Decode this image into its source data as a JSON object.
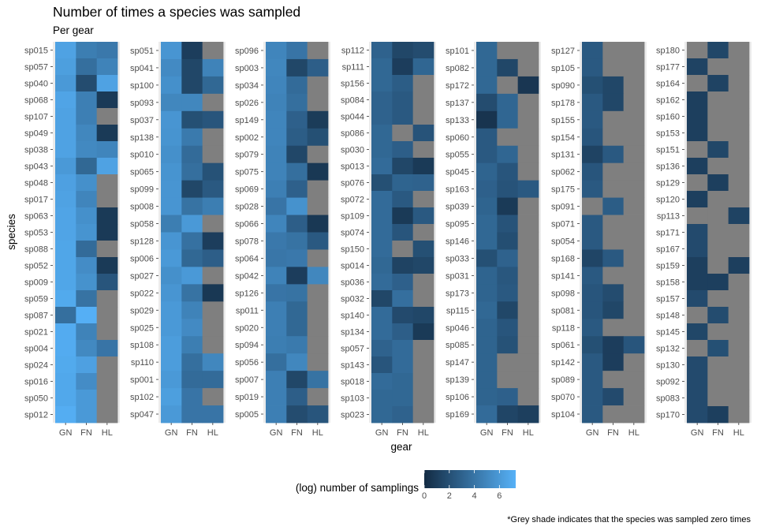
{
  "chart_data": {
    "type": "heatmap",
    "title": "Number of times a species was sampled",
    "subtitle": "Per gear",
    "xlabel": "gear",
    "ylabel": "species",
    "x_categories": [
      "GN",
      "FN",
      "HL"
    ],
    "legend": {
      "title": "(log) number of samplings",
      "ticks": [
        0,
        2,
        4,
        6
      ],
      "range": [
        0,
        7.3
      ],
      "low_color": "#132B43",
      "high_color": "#56B1F7",
      "placement": "bottom"
    },
    "na_color": "#7F7F7F",
    "caption": "*Grey shade indicates that the species was sampled zero times",
    "facets": [
      {
        "species": [
          "sp015",
          "sp057",
          "sp040",
          "sp068",
          "sp107",
          "sp049",
          "sp038",
          "sp043",
          "sp048",
          "sp017",
          "sp063",
          "sp053",
          "sp088",
          "sp052",
          "sp009",
          "sp059",
          "sp087",
          "sp021",
          "sp004",
          "sp024",
          "sp016",
          "sp050",
          "sp012"
        ],
        "values": [
          [
            6.5,
            4.5,
            4.2
          ],
          [
            6.3,
            3.7,
            4.8
          ],
          [
            6.0,
            1.8,
            6.5
          ],
          [
            6.6,
            4.6,
            0.8
          ],
          [
            6.5,
            4.6,
            null
          ],
          [
            6.5,
            5.0,
            0.8
          ],
          [
            6.5,
            5.1,
            4.9
          ],
          [
            6.0,
            3.3,
            6.5
          ],
          [
            6.4,
            5.5,
            null
          ],
          [
            6.5,
            4.9,
            null
          ],
          [
            6.6,
            5.5,
            0.8
          ],
          [
            6.6,
            5.7,
            0.8
          ],
          [
            6.7,
            3.5,
            null
          ],
          [
            6.7,
            5.3,
            0.8
          ],
          [
            6.7,
            5.6,
            2.3
          ],
          [
            6.9,
            3.9,
            null
          ],
          [
            3.7,
            7.2,
            null
          ],
          [
            7.0,
            4.8,
            null
          ],
          [
            7.0,
            5.1,
            4.0
          ],
          [
            6.9,
            6.4,
            null
          ],
          [
            6.8,
            5.3,
            null
          ],
          [
            6.8,
            6.0,
            null
          ],
          [
            7.1,
            6.0,
            null
          ]
        ]
      },
      {
        "species": [
          "sp051",
          "sp041",
          "sp100",
          "sp093",
          "sp037",
          "sp138",
          "sp010",
          "sp065",
          "sp099",
          "sp008",
          "sp058",
          "sp128",
          "sp006",
          "sp027",
          "sp022",
          "sp029",
          "sp025",
          "sp108",
          "sp110",
          "sp001",
          "sp102",
          "sp047"
        ],
        "values": [
          [
            5.8,
            1.0,
            null
          ],
          [
            5.2,
            1.5,
            4.8
          ],
          [
            5.5,
            1.5,
            3.3
          ],
          [
            5.0,
            5.0,
            null
          ],
          [
            5.8,
            2.0,
            2.3
          ],
          [
            5.7,
            4.3,
            null
          ],
          [
            5.5,
            3.5,
            null
          ],
          [
            5.7,
            3.7,
            2.1
          ],
          [
            5.8,
            1.5,
            2.5
          ],
          [
            5.8,
            3.9,
            4.5
          ],
          [
            4.5,
            6.0,
            null
          ],
          [
            5.8,
            3.8,
            1.0
          ],
          [
            6.0,
            3.3,
            2.8
          ],
          [
            5.5,
            6.0,
            null
          ],
          [
            5.8,
            3.9,
            0.7
          ],
          [
            6.0,
            4.8,
            null
          ],
          [
            6.0,
            5.2,
            null
          ],
          [
            6.2,
            4.5,
            null
          ],
          [
            6.2,
            3.7,
            5.0
          ],
          [
            6.0,
            3.5,
            3.5
          ],
          [
            6.3,
            4.0,
            null
          ],
          [
            6.0,
            4.0,
            4.0
          ]
        ]
      },
      {
        "species": [
          "sp096",
          "sp003",
          "sp034",
          "sp026",
          "sp149",
          "sp002",
          "sp079",
          "sp075",
          "sp069",
          "sp028",
          "sp066",
          "sp078",
          "sp064",
          "sp042",
          "sp126",
          "sp011",
          "sp020",
          "sp094",
          "sp056",
          "sp007",
          "sp019",
          "sp005"
        ],
        "values": [
          [
            4.9,
            4.0,
            null
          ],
          [
            5.0,
            1.5,
            2.8
          ],
          [
            4.9,
            3.5,
            null
          ],
          [
            4.8,
            3.7,
            null
          ],
          [
            4.9,
            2.9,
            0.9
          ],
          [
            4.9,
            2.7,
            2.0
          ],
          [
            4.8,
            1.5,
            null
          ],
          [
            4.8,
            3.7,
            0.7
          ],
          [
            4.6,
            2.9,
            null
          ],
          [
            4.0,
            5.6,
            null
          ],
          [
            4.9,
            2.8,
            0.7
          ],
          [
            4.2,
            3.9,
            2.5
          ],
          [
            4.1,
            4.2,
            null
          ],
          [
            4.8,
            1.0,
            5.0
          ],
          [
            4.0,
            3.9,
            null
          ],
          [
            4.6,
            3.3,
            null
          ],
          [
            4.6,
            3.3,
            null
          ],
          [
            4.5,
            4.3,
            null
          ],
          [
            3.7,
            5.0,
            null
          ],
          [
            4.6,
            1.5,
            3.9
          ],
          [
            4.6,
            2.8,
            null
          ],
          [
            4.6,
            1.8,
            2.3
          ]
        ]
      },
      {
        "species": [
          "sp112",
          "sp111",
          "sp156",
          "sp084",
          "sp044",
          "sp086",
          "sp030",
          "sp013",
          "sp076",
          "sp072",
          "sp109",
          "sp074",
          "sp150",
          "sp014",
          "sp036",
          "sp032",
          "sp140",
          "sp134",
          "sp057",
          "sp143",
          "sp018",
          "sp103",
          "sp023"
        ],
        "values": [
          [
            3.0,
            1.5,
            1.8
          ],
          [
            3.3,
            1.0,
            3.2
          ],
          [
            3.3,
            2.7,
            null
          ],
          [
            3.0,
            2.5,
            null
          ],
          [
            3.0,
            2.5,
            null
          ],
          [
            3.3,
            null,
            2.2
          ],
          [
            3.3,
            2.8,
            null
          ],
          [
            3.5,
            1.5,
            0.8
          ],
          [
            2.0,
            3.1,
            3.0
          ],
          [
            3.5,
            2.5,
            null
          ],
          [
            3.5,
            0.8,
            2.5
          ],
          [
            3.5,
            2.3,
            null
          ],
          [
            3.5,
            null,
            2.0
          ],
          [
            3.3,
            1.3,
            1.5
          ],
          [
            3.5,
            2.9,
            null
          ],
          [
            1.5,
            3.7,
            null
          ],
          [
            3.5,
            1.7,
            1.5
          ],
          [
            3.5,
            2.8,
            0.8
          ],
          [
            3.0,
            3.5,
            null
          ],
          [
            2.3,
            3.5,
            null
          ],
          [
            3.5,
            3.3,
            null
          ],
          [
            3.3,
            3.3,
            null
          ],
          [
            3.3,
            3.0,
            null
          ]
        ]
      },
      {
        "species": [
          "sp101",
          "sp082",
          "sp172",
          "sp137",
          "sp133",
          "sp060",
          "sp055",
          "sp045",
          "sp163",
          "sp039",
          "sp095",
          "sp146",
          "sp033",
          "sp031",
          "sp173",
          "sp115",
          "sp046",
          "sp085",
          "sp147",
          "sp139",
          "sp106",
          "sp169"
        ],
        "values": [
          [
            3.3,
            null,
            null
          ],
          [
            3.3,
            1.5,
            null
          ],
          [
            3.3,
            null,
            0.6
          ],
          [
            1.8,
            3.2,
            null
          ],
          [
            0.5,
            3.2,
            null
          ],
          [
            2.5,
            null,
            null
          ],
          [
            2.5,
            3.2,
            null
          ],
          [
            3.1,
            2.3,
            null
          ],
          [
            2.9,
            2.2,
            2.5
          ],
          [
            3.1,
            0.8,
            null
          ],
          [
            3.3,
            2.2,
            null
          ],
          [
            3.3,
            1.9,
            null
          ],
          [
            2.0,
            3.0,
            null
          ],
          [
            3.1,
            2.4,
            null
          ],
          [
            3.1,
            2.5,
            null
          ],
          [
            3.3,
            1.5,
            null
          ],
          [
            3.1,
            2.3,
            null
          ],
          [
            3.1,
            2.1,
            null
          ],
          [
            3.1,
            null,
            null
          ],
          [
            3.1,
            null,
            null
          ],
          [
            3.1,
            2.9,
            null
          ],
          [
            3.5,
            1.4,
            1.1
          ]
        ]
      },
      {
        "species": [
          "sp127",
          "sp105",
          "sp090",
          "sp178",
          "sp155",
          "sp154",
          "sp131",
          "sp062",
          "sp175",
          "sp091",
          "sp071",
          "sp054",
          "sp168",
          "sp141",
          "sp098",
          "sp081",
          "sp118",
          "sp061",
          "sp142",
          "sp089",
          "sp070",
          "sp104"
        ],
        "values": [
          [
            2.5,
            null,
            null
          ],
          [
            2.5,
            null,
            null
          ],
          [
            2.0,
            1.5,
            null
          ],
          [
            2.5,
            1.5,
            null
          ],
          [
            2.5,
            null,
            null
          ],
          [
            2.3,
            null,
            null
          ],
          [
            1.3,
            2.5,
            null
          ],
          [
            2.3,
            null,
            null
          ],
          [
            2.5,
            null,
            null
          ],
          [
            null,
            2.7,
            null
          ],
          [
            2.5,
            null,
            null
          ],
          [
            2.5,
            null,
            null
          ],
          [
            1.4,
            2.5,
            null
          ],
          [
            2.5,
            null,
            null
          ],
          [
            2.3,
            1.8,
            null
          ],
          [
            2.3,
            1.5,
            null
          ],
          [
            2.5,
            null,
            null
          ],
          [
            2.0,
            1.0,
            2.3
          ],
          [
            2.5,
            1.0,
            null
          ],
          [
            2.5,
            null,
            null
          ],
          [
            2.5,
            1.7,
            null
          ],
          [
            2.5,
            null,
            null
          ]
        ]
      },
      {
        "species": [
          "sp180",
          "sp177",
          "sp164",
          "sp162",
          "sp160",
          "sp153",
          "sp151",
          "sp136",
          "sp129",
          "sp120",
          "sp113",
          "sp171",
          "sp167",
          "sp159",
          "sp158",
          "sp157",
          "sp148",
          "sp145",
          "sp132",
          "sp130",
          "sp092",
          "sp083",
          "sp170"
        ],
        "values": [
          [
            null,
            1.5,
            null
          ],
          [
            1.3,
            null,
            null
          ],
          [
            null,
            1.3,
            null
          ],
          [
            1.1,
            null,
            null
          ],
          [
            1.1,
            null,
            null
          ],
          [
            1.1,
            null,
            null
          ],
          [
            null,
            1.5,
            null
          ],
          [
            1.1,
            null,
            null
          ],
          [
            null,
            1.1,
            null
          ],
          [
            1.1,
            null,
            null
          ],
          [
            null,
            null,
            1.3
          ],
          [
            1.7,
            null,
            null
          ],
          [
            1.7,
            null,
            null
          ],
          [
            1.1,
            null,
            1.1
          ],
          [
            1.1,
            1.1,
            null
          ],
          [
            1.7,
            null,
            null
          ],
          [
            null,
            1.8,
            null
          ],
          [
            1.5,
            null,
            null
          ],
          [
            null,
            2.0,
            null
          ],
          [
            1.7,
            null,
            null
          ],
          [
            1.7,
            null,
            null
          ],
          [
            1.7,
            null,
            null
          ],
          [
            1.7,
            1.1,
            null
          ]
        ]
      }
    ]
  }
}
